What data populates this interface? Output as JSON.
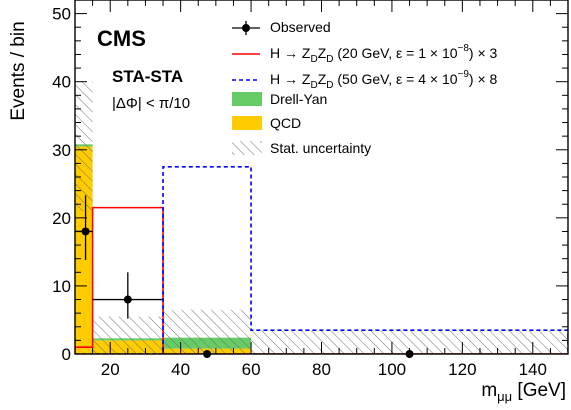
{
  "chart_data": {
    "type": "bar",
    "experiment": "CMS",
    "selection": "STA-STA",
    "cut": "|ΔΦ| < π/10",
    "xlabel_main": "m",
    "xlabel_sub": "μμ",
    "xlabel_unit": " [GeV]",
    "ylabel": "Events / bin",
    "xlim": [
      10,
      150
    ],
    "ylim": [
      0,
      52
    ],
    "xticks": [
      20,
      40,
      60,
      80,
      100,
      120,
      140
    ],
    "yticks": [
      0,
      10,
      20,
      30,
      40,
      50
    ],
    "bin_edges": [
      10,
      15,
      35,
      60,
      150
    ],
    "series": [
      {
        "name": "QCD",
        "values": [
          30.5,
          2.0,
          0.8,
          0.0
        ],
        "color": "#ffcc00"
      },
      {
        "name": "Drell-Yan",
        "values": [
          0.3,
          0.3,
          1.6,
          0.1
        ],
        "color": "#66cc66"
      },
      {
        "name": "H → Z_D Z_D (20 GeV, ε = 1×10^-8) × 3",
        "values": [
          1.0,
          21.5,
          0.0,
          0.0
        ],
        "color": "#ff0000"
      },
      {
        "name": "H → Z_D Z_D (50 GeV, ε = 4×10^-9) × 8",
        "values": [
          0.0,
          0.0,
          27.5,
          3.5
        ],
        "color": "#0000ff"
      }
    ],
    "stat_uncertainty": {
      "name": "Stat. uncertainty",
      "lower": [
        21.0,
        0.0,
        0.0,
        0.0
      ],
      "upper": [
        40.0,
        5.5,
        6.5,
        3.4
      ]
    },
    "observed": {
      "name": "Observed",
      "points": [
        {
          "x": 13,
          "y": 18,
          "xerr": [
            3,
            2
          ],
          "yerr": [
            4.2,
            5.3
          ]
        },
        {
          "x": 25,
          "y": 8,
          "xerr": [
            10,
            10
          ],
          "yerr": [
            2.8,
            4.0
          ]
        },
        {
          "x": 47.5,
          "y": 0,
          "xerr": [
            0,
            0
          ],
          "yerr": [
            0,
            0
          ]
        },
        {
          "x": 105,
          "y": 0,
          "xerr": [
            0,
            0
          ],
          "yerr": [
            0,
            0
          ]
        }
      ]
    },
    "legend": {
      "placement": "top-right",
      "entries": [
        {
          "key": "observed",
          "label": "Observed"
        },
        {
          "key": "sig20",
          "pre": "H → Z",
          "sub1": "D",
          "mid": "Z",
          "sub2": "D",
          "post": " (20 GeV, ε = 1 × 10",
          "sup": "−8",
          "end": ") × 3"
        },
        {
          "key": "sig50",
          "pre": "H → Z",
          "sub1": "D",
          "mid": "Z",
          "sub2": "D",
          "post": " (50 GeV, ε = 4 × 10",
          "sup": "−9",
          "end": ") × 8"
        },
        {
          "key": "dy",
          "label": "Drell-Yan"
        },
        {
          "key": "qcd",
          "label": "QCD"
        },
        {
          "key": "stat",
          "label": "Stat. uncertainty"
        }
      ]
    }
  }
}
